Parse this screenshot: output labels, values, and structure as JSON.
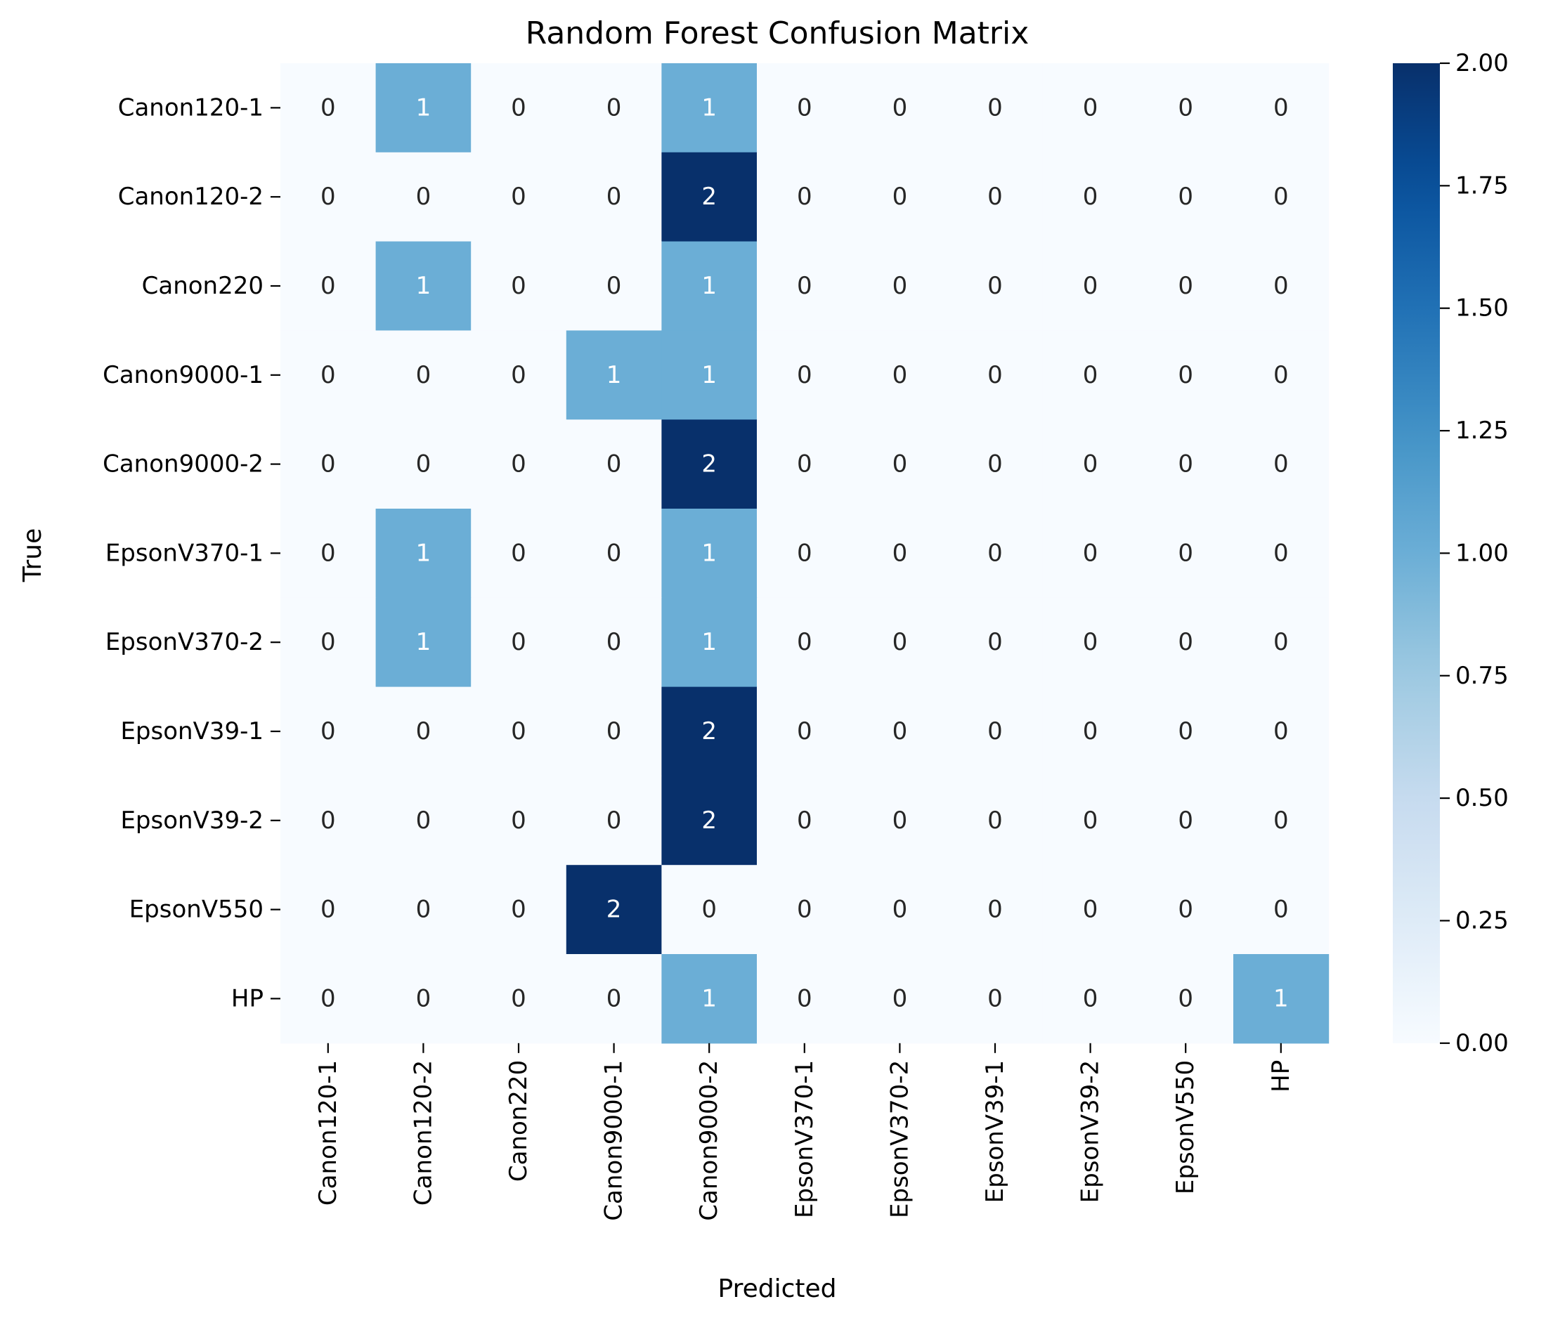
{
  "chart_data": {
    "type": "heatmap",
    "title": "Random Forest Confusion Matrix",
    "xlabel": "Predicted",
    "ylabel": "True",
    "x_categories": [
      "Canon120-1",
      "Canon120-2",
      "Canon220",
      "Canon9000-1",
      "Canon9000-2",
      "EpsonV370-1",
      "EpsonV370-2",
      "EpsonV39-1",
      "EpsonV39-2",
      "EpsonV550",
      "HP"
    ],
    "y_categories": [
      "Canon120-1",
      "Canon120-2",
      "Canon220",
      "Canon9000-1",
      "Canon9000-2",
      "EpsonV370-1",
      "EpsonV370-2",
      "EpsonV39-1",
      "EpsonV39-2",
      "EpsonV550",
      "HP"
    ],
    "values": [
      [
        0,
        1,
        0,
        0,
        1,
        0,
        0,
        0,
        0,
        0,
        0
      ],
      [
        0,
        0,
        0,
        0,
        2,
        0,
        0,
        0,
        0,
        0,
        0
      ],
      [
        0,
        1,
        0,
        0,
        1,
        0,
        0,
        0,
        0,
        0,
        0
      ],
      [
        0,
        0,
        0,
        1,
        1,
        0,
        0,
        0,
        0,
        0,
        0
      ],
      [
        0,
        0,
        0,
        0,
        2,
        0,
        0,
        0,
        0,
        0,
        0
      ],
      [
        0,
        1,
        0,
        0,
        1,
        0,
        0,
        0,
        0,
        0,
        0
      ],
      [
        0,
        1,
        0,
        0,
        1,
        0,
        0,
        0,
        0,
        0,
        0
      ],
      [
        0,
        0,
        0,
        0,
        2,
        0,
        0,
        0,
        0,
        0,
        0
      ],
      [
        0,
        0,
        0,
        0,
        2,
        0,
        0,
        0,
        0,
        0,
        0
      ],
      [
        0,
        0,
        0,
        2,
        0,
        0,
        0,
        0,
        0,
        0,
        0
      ],
      [
        0,
        0,
        0,
        0,
        1,
        0,
        0,
        0,
        0,
        0,
        1
      ]
    ],
    "colorbar": {
      "min": 0,
      "max": 2,
      "ticks": [
        "0.00",
        "0.25",
        "0.50",
        "0.75",
        "1.00",
        "1.25",
        "1.50",
        "1.75",
        "2.00"
      ],
      "colormap": "Blues",
      "color_low": "#f7fbff",
      "color_high": "#08306b"
    }
  }
}
